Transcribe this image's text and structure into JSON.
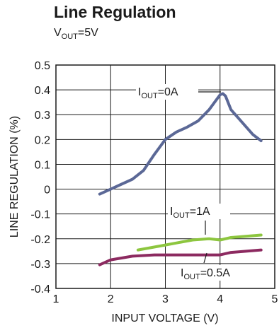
{
  "chart_data": {
    "type": "line",
    "title": "Line Regulation",
    "subtitle": {
      "prefix": "V",
      "sub": "OUT",
      "suffix": "=5V"
    },
    "xlabel": "INPUT VOLTAGE (V)",
    "ylabel": "LINE REGULATION (%)",
    "xlim": [
      1,
      5
    ],
    "ylim": [
      -0.4,
      0.5
    ],
    "x_ticks": [
      "1",
      "2",
      "3",
      "4",
      "5"
    ],
    "y_ticks": [
      "0.5",
      "0.4",
      "0.3",
      "0.2",
      "0.1",
      "0",
      "-0.1",
      "-0.2",
      "-0.3",
      "-0.4"
    ],
    "grid": true,
    "series": [
      {
        "name": "I_OUT=0A",
        "label": {
          "prefix": "I",
          "sub": "OUT",
          "suffix": "=0A"
        },
        "color": "#5b6896",
        "points": [
          [
            1.8,
            -0.02
          ],
          [
            2.0,
            0.0
          ],
          [
            2.2,
            0.02
          ],
          [
            2.4,
            0.04
          ],
          [
            2.6,
            0.075
          ],
          [
            2.8,
            0.14
          ],
          [
            3.0,
            0.2
          ],
          [
            3.2,
            0.23
          ],
          [
            3.4,
            0.25
          ],
          [
            3.6,
            0.275
          ],
          [
            3.8,
            0.32
          ],
          [
            4.0,
            0.38
          ],
          [
            4.05,
            0.385
          ],
          [
            4.1,
            0.375
          ],
          [
            4.2,
            0.32
          ],
          [
            4.4,
            0.27
          ],
          [
            4.6,
            0.22
          ],
          [
            4.75,
            0.195
          ]
        ]
      },
      {
        "name": "I_OUT=1A",
        "label": {
          "prefix": "I",
          "sub": "OUT",
          "suffix": "=1A"
        },
        "color": "#8dc63f",
        "points": [
          [
            2.5,
            -0.245
          ],
          [
            3.0,
            -0.225
          ],
          [
            3.5,
            -0.205
          ],
          [
            3.8,
            -0.2
          ],
          [
            4.0,
            -0.205
          ],
          [
            4.2,
            -0.195
          ],
          [
            4.75,
            -0.185
          ]
        ]
      },
      {
        "name": "I_OUT=0.5A",
        "label": {
          "prefix": "I",
          "sub": "OUT",
          "suffix": "=0.5A"
        },
        "color": "#8c2a60",
        "points": [
          [
            1.8,
            -0.305
          ],
          [
            2.0,
            -0.285
          ],
          [
            2.4,
            -0.27
          ],
          [
            2.8,
            -0.265
          ],
          [
            3.2,
            -0.265
          ],
          [
            3.6,
            -0.265
          ],
          [
            4.0,
            -0.265
          ],
          [
            4.2,
            -0.255
          ],
          [
            4.75,
            -0.245
          ]
        ]
      }
    ]
  }
}
